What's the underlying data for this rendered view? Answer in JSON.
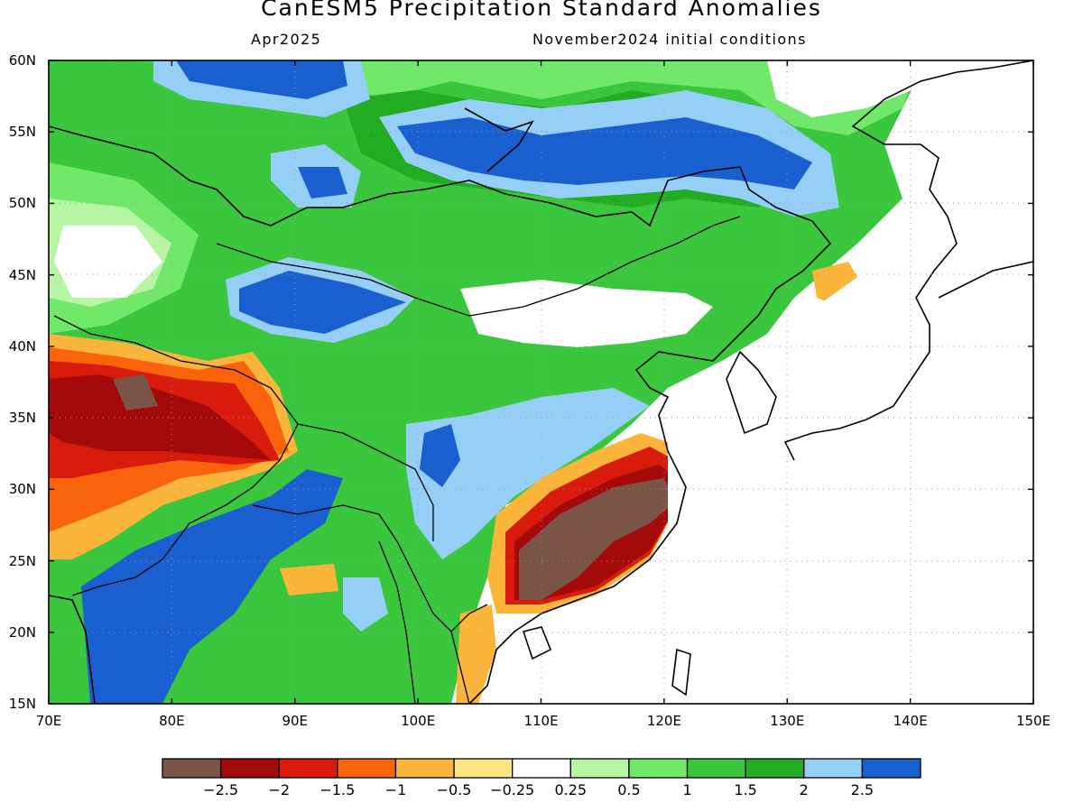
{
  "title": "CanESM5 Precipitation Standard Anomalies",
  "subtitle_left": "Apr2025",
  "subtitle_right": "November2024 initial conditions",
  "lat_labels": [
    "60N",
    "55N",
    "50N",
    "45N",
    "40N",
    "35N",
    "30N",
    "25N",
    "20N",
    "15N"
  ],
  "lon_labels": [
    "70E",
    "80E",
    "90E",
    "100E",
    "110E",
    "120E",
    "130E",
    "140E",
    "150E"
  ],
  "colorbar": {
    "colors": [
      "#7a5447",
      "#a50a0a",
      "#d91b0e",
      "#f8630c",
      "#fbb53a",
      "#fde484",
      "#ffffff",
      "#b7f5a4",
      "#71e86a",
      "#3ac73d",
      "#22ac24",
      "#96cff5",
      "#1a5fcf"
    ],
    "labels": [
      "−2.5",
      "−2",
      "−1.5",
      "−1",
      "−0.5",
      "−0.25",
      "0.25",
      "0.5",
      "1",
      "1.5",
      "2",
      "2.5"
    ]
  }
}
